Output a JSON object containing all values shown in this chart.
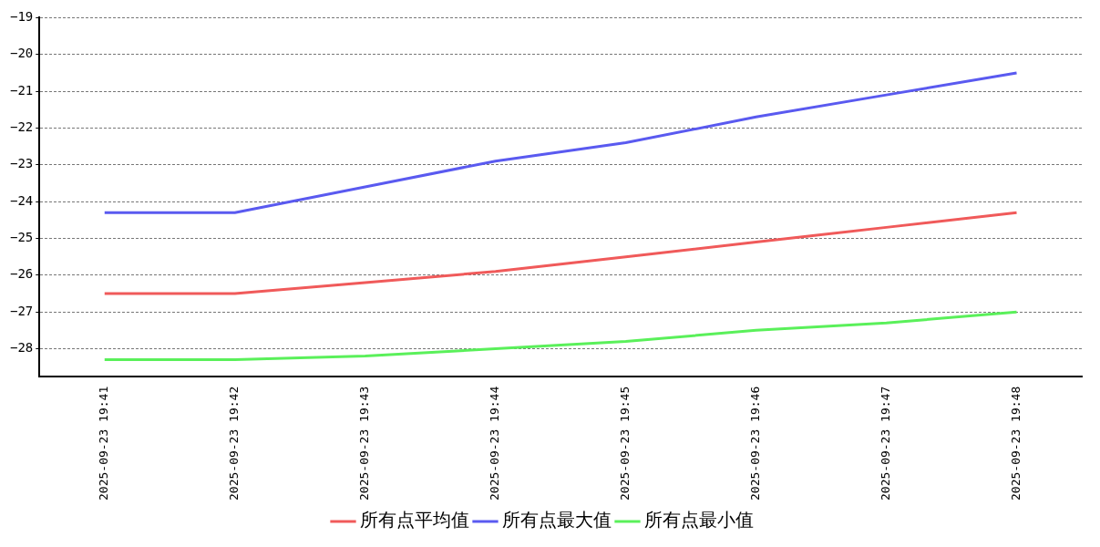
{
  "chart_data": {
    "type": "line",
    "categories": [
      "2025-09-23 19:41",
      "2025-09-23 19:42",
      "2025-09-23 19:43",
      "2025-09-23 19:44",
      "2025-09-23 19:45",
      "2025-09-23 19:46",
      "2025-09-23 19:47",
      "2025-09-23 19:48"
    ],
    "series": [
      {
        "name": "所有点平均值",
        "color": "#f05a5a",
        "values": [
          -26.5,
          -26.5,
          -26.2,
          -25.9,
          -25.5,
          -25.1,
          -24.7,
          -24.3
        ]
      },
      {
        "name": "所有点最大值",
        "color": "#5a5af0",
        "values": [
          -24.3,
          -24.3,
          -23.6,
          -22.9,
          -22.4,
          -21.7,
          -21.1,
          -20.5
        ]
      },
      {
        "name": "所有点最小值",
        "color": "#5af05a",
        "values": [
          -28.3,
          -28.3,
          -28.2,
          -28.0,
          -27.8,
          -27.5,
          -27.3,
          -27.0
        ]
      }
    ],
    "ylim": [
      -28.75,
      -19
    ],
    "yticks": [
      -28,
      -27,
      -26,
      -25,
      -24,
      -23,
      -22,
      -21,
      -20,
      -19
    ],
    "grid": "y",
    "legend": "bottom",
    "marker": "none",
    "line_style": "solid"
  }
}
